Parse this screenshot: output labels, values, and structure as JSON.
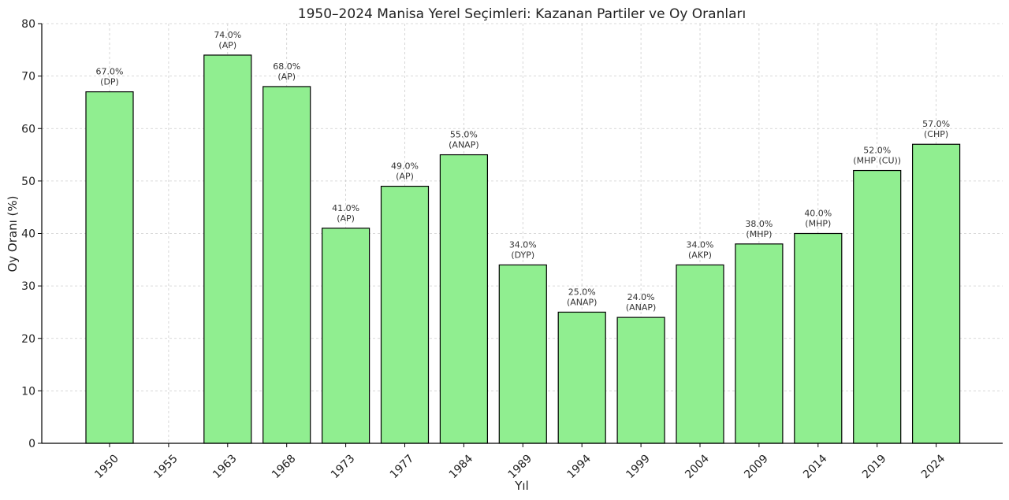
{
  "chart_data": {
    "type": "bar",
    "title": "1950–2024 Manisa Yerel Seçimleri: Kazanan Partiler ve Oy Oranları",
    "xlabel": "Yıl",
    "ylabel": "Oy Oranı (%)",
    "ylim": [
      0,
      80
    ],
    "yticks": [
      0,
      10,
      20,
      30,
      40,
      50,
      60,
      70,
      80
    ],
    "grid": true,
    "categories": [
      "1950",
      "1955",
      "1963",
      "1968",
      "1973",
      "1977",
      "1984",
      "1989",
      "1994",
      "1999",
      "2004",
      "2009",
      "2014",
      "2019",
      "2024"
    ],
    "values": [
      67.0,
      null,
      74.0,
      68.0,
      41.0,
      49.0,
      55.0,
      34.0,
      25.0,
      24.0,
      34.0,
      38.0,
      40.0,
      52.0,
      57.0
    ],
    "value_labels": [
      "67.0%",
      null,
      "74.0%",
      "68.0%",
      "41.0%",
      "49.0%",
      "55.0%",
      "34.0%",
      "25.0%",
      "24.0%",
      "34.0%",
      "38.0%",
      "40.0%",
      "52.0%",
      "57.0%"
    ],
    "parties": [
      "(DP)",
      null,
      "(AP)",
      "(AP)",
      "(AP)",
      "(AP)",
      "(ANAP)",
      "(DYP)",
      "(ANAP)",
      "(ANAP)",
      "(AKP)",
      "(MHP)",
      "(MHP)",
      "(MHP (CU))",
      "(CHP)"
    ],
    "colors": {
      "bar": "#90ee90",
      "edge": "#000000"
    }
  }
}
